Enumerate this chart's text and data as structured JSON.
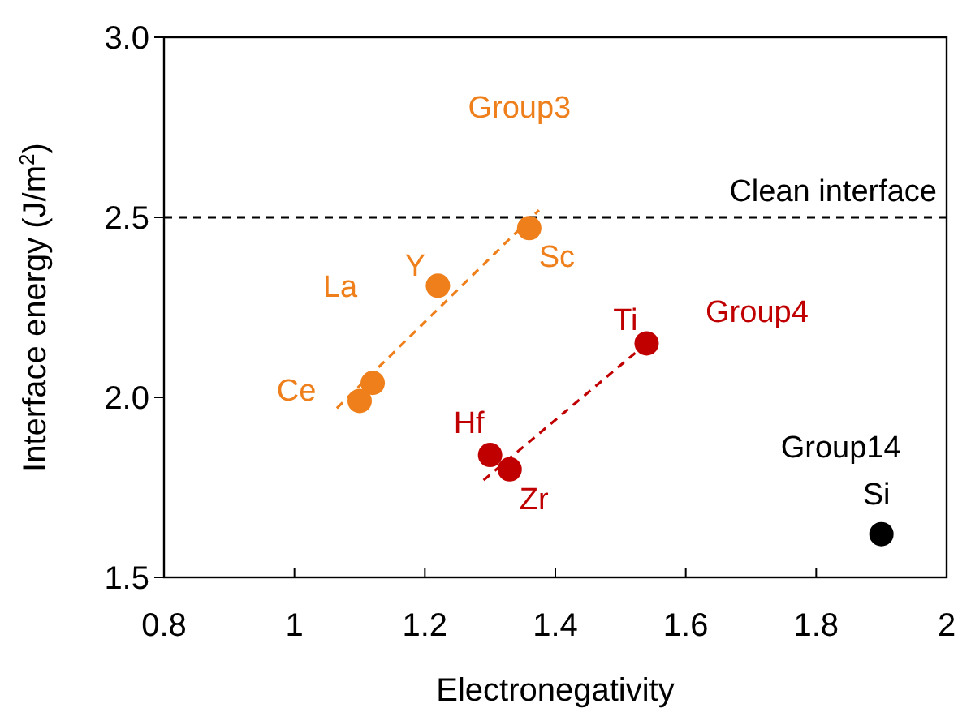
{
  "chart_data": {
    "type": "scatter",
    "xlabel": "Electronegativity",
    "ylabel": "Interface energy (J/m$^{2}$)",
    "xlim": [
      0.8,
      2
    ],
    "xticks": [
      0.8,
      1,
      1.2,
      1.4,
      1.6,
      1.8,
      2
    ],
    "ylim": [
      1.5,
      3.0
    ],
    "yticks": [
      {
        "value": 1.5,
        "label": "1.5"
      },
      {
        "value": 2,
        "label": "2.0"
      },
      {
        "value": 2.5,
        "label": "2.5"
      },
      {
        "value": 3,
        "label": "3.0"
      }
    ],
    "grid": false,
    "legend": false,
    "marker": "circle",
    "series": [
      {
        "name": "Group3",
        "color": "#ee7f1a",
        "x": [
          1.1,
          1.12,
          1.22,
          1.36
        ],
        "values": [
          1.99,
          2.04,
          2.31,
          2.47
        ]
      },
      {
        "name": "Group4",
        "color": "#c00000",
        "x": [
          1.3,
          1.33,
          1.54
        ],
        "values": [
          1.84,
          1.8,
          2.15
        ]
      },
      {
        "name": "Group14",
        "color": "#000000",
        "x": [
          1.9
        ],
        "values": [
          1.62
        ]
      },
      {
        "type": "line",
        "line_style": "dashed",
        "marker": "none",
        "color": "#ee7f1a",
        "x": [
          1.065,
          1.375
        ],
        "values": [
          1.97,
          2.52
        ]
      },
      {
        "type": "line",
        "line_style": "dashed",
        "marker": "none",
        "color": "#c00000",
        "x": [
          1.29,
          1.54
        ],
        "values": [
          1.77,
          2.15
        ]
      }
    ],
    "ref_lines": [
      {
        "axis": "y",
        "value": 2.5,
        "label": "Clean interface",
        "color": "#000000",
        "line_style": "dashed"
      }
    ],
    "annotations": [
      {
        "text": "Sc",
        "x": 1.36,
        "y": 2.47
      },
      {
        "text": "Y",
        "x": 1.22,
        "y": 2.31
      },
      {
        "text": "La",
        "x": 1.12,
        "y": 2.04
      },
      {
        "text": "Ce",
        "x": 1.1,
        "y": 1.99
      },
      {
        "text": "Ti",
        "x": 1.54,
        "y": 2.15
      },
      {
        "text": "Hf",
        "x": 1.3,
        "y": 1.84
      },
      {
        "text": "Zr",
        "x": 1.33,
        "y": 1.8
      },
      {
        "text": "Si",
        "x": 1.9,
        "y": 1.62
      }
    ]
  }
}
